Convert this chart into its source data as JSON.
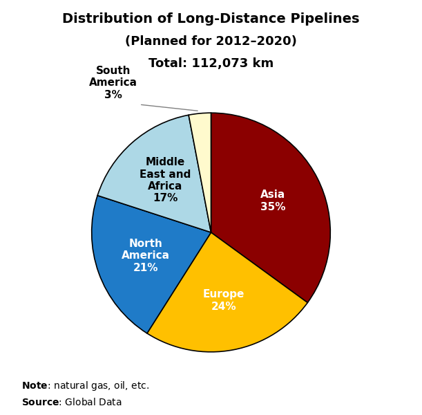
{
  "title_line1": "Distribution of Long-Distance Pipelines",
  "title_line2": "(Planned for 2012–2020)",
  "title_line3": "Total: 112,073 km",
  "labels": [
    "Asia",
    "Europe",
    "North\nAmerica",
    "Middle\nEast and\nAfrica",
    "South\nAmerica"
  ],
  "sizes": [
    35,
    24,
    21,
    17,
    3
  ],
  "colors": [
    "#8B0000",
    "#FFC000",
    "#1F7BC8",
    "#ADD8E6",
    "#FFFACD"
  ],
  "label_colors": [
    "white",
    "white",
    "white",
    "black",
    "black"
  ],
  "note_bold": "Note",
  "note_rest": ": natural gas, oil, etc.",
  "source_bold": "Source",
  "source_rest": ": Global Data"
}
